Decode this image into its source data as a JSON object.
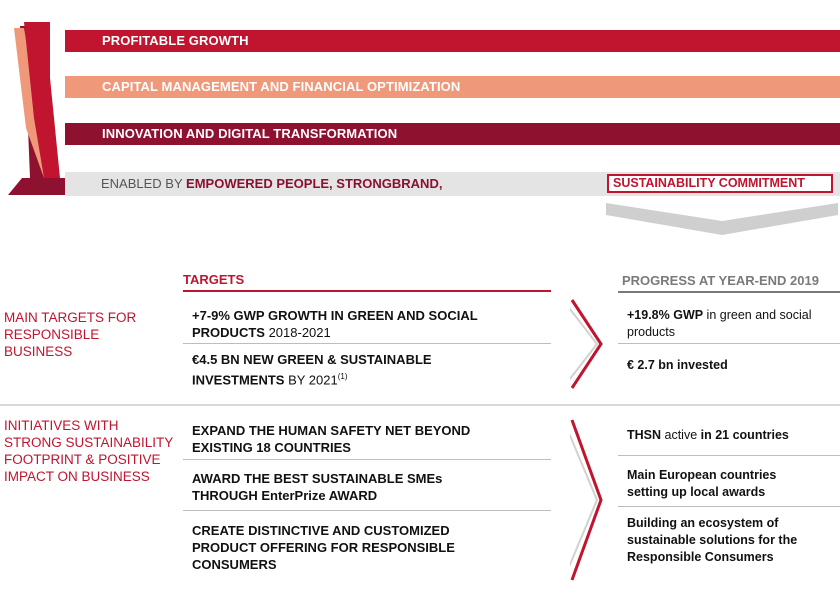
{
  "pillars": [
    {
      "label": "PROFITABLE GROWTH",
      "color": "#c0142f"
    },
    {
      "label": "CAPITAL MANAGEMENT AND FINANCIAL OPTIMIZATION",
      "color": "#f0997a"
    },
    {
      "label": "INNOVATION AND DIGITAL TRANSFORMATION",
      "color": "#8e1230"
    }
  ],
  "enabled": {
    "prefix": "ENABLED BY ",
    "bold": "EMPOWERED PEOPLE, STRONGBRAND,",
    "highlight": "SUSTAINABILITY COMMITMENT"
  },
  "headers": {
    "targets": "TARGETS",
    "progress": "PROGRESS AT YEAR-END 2019"
  },
  "sections": {
    "main_targets": "MAIN TARGETS FOR RESPONSIBLE BUSINESS",
    "initiatives": "INITIATIVES WITH STRONG SUSTAINABILITY FOOTPRINT & POSITIVE IMPACT ON BUSINESS"
  },
  "targets": {
    "t1_bold": "+7-9% GWP GROWTH IN GREEN AND SOCIAL PRODUCTS",
    "t1_rest": " 2018-2021",
    "t2_bold": "€4.5 BN NEW GREEN & SUSTAINABLE INVESTMENTS",
    "t2_rest": " BY 2021",
    "t2_sup": "(1)"
  },
  "initiatives": [
    "EXPAND THE HUMAN SAFETY NET BEYOND EXISTING 18 COUNTRIES",
    "AWARD THE BEST SUSTAINABLE SMEs THROUGH EnterPrize AWARD",
    "CREATE DISTINCTIVE AND CUSTOMIZED PRODUCT OFFERING FOR RESPONSIBLE CONSUMERS"
  ],
  "progress": {
    "p1_bold": "+19.8% GWP",
    "p1_rest": " in green and social products",
    "p2": "€ 2.7 bn invested",
    "p3_a": "THSN",
    "p3_b": " active ",
    "p3_c": "in 21 countries",
    "p4": "Main European countries setting up local awards",
    "p5": "Building an ecosystem of sustainable solutions for the Responsible Consumers"
  },
  "colors": {
    "red": "#c0142f",
    "salmon": "#f0997a",
    "burgundy": "#8e1230",
    "gray": "#7a7a7a"
  }
}
